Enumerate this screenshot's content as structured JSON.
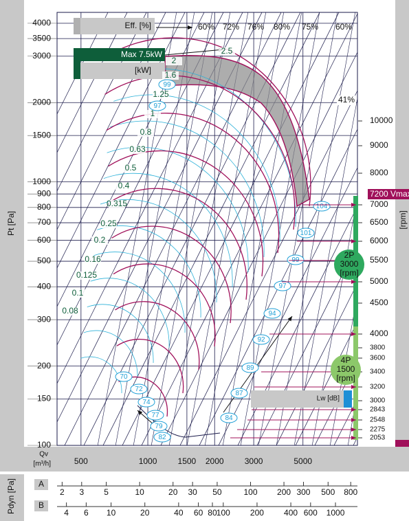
{
  "chart_data": {
    "type": "fan-curve",
    "y_label": "Pt [Pa]",
    "ylim": [
      100,
      4400
    ],
    "yticks": [
      100,
      150,
      200,
      300,
      400,
      500,
      600,
      700,
      800,
      900,
      1000,
      1500,
      2000,
      3000,
      3500,
      4000
    ],
    "x_label": "Qv",
    "x_unit": "[m³/h]",
    "xlim": [
      390,
      8800
    ],
    "xticks": [
      500,
      1000,
      1500,
      2000,
      3000,
      5000
    ],
    "efficiency_title": "Eff. [%]",
    "efficiency_labels": [
      "60%",
      "72%",
      "76%",
      "80%",
      "75%",
      "60%"
    ],
    "efficiency_side": "41%",
    "power_title": "Max 7.5kW",
    "power_unit": "[kW]",
    "power_values": [
      2.5,
      2,
      1.6,
      1.25,
      1,
      0.8,
      0.63,
      0.5,
      0.4,
      0.315,
      0.25,
      0.2,
      0.16,
      0.125,
      0.1,
      0.08
    ],
    "noise_values": [
      99,
      97,
      104,
      101,
      99,
      97,
      94,
      92,
      89,
      87,
      84,
      70,
      72,
      74,
      77,
      79,
      82
    ],
    "noise_title": "Lw [dB]",
    "rpm_label": "[rpm]",
    "rpm_ticks": [
      10000,
      9000,
      8000,
      7000,
      6500,
      6000,
      5500,
      5000,
      4500,
      4000,
      3800,
      3600,
      3400,
      3200,
      3000,
      2843,
      2548,
      2275,
      2053
    ],
    "vmax_label": "7200 Vmax",
    "motors": [
      {
        "poles": "2P",
        "speed": 3000,
        "unit": "[rpm]"
      },
      {
        "poles": "4P",
        "speed": 1500,
        "unit": "[rpm]"
      }
    ],
    "pdyn_label": "Pdyn [Pa]",
    "pdyn_scales": [
      {
        "name": "A",
        "xlim": [
          1.8,
          920
        ],
        "ticks": [
          2,
          3,
          5,
          10,
          20,
          30,
          50,
          100,
          200,
          300,
          500,
          800
        ]
      },
      {
        "name": "B",
        "xlim": [
          3.3,
          1570
        ],
        "ticks": [
          4,
          6,
          10,
          20,
          40,
          60,
          80,
          100,
          200,
          400,
          600,
          1000
        ]
      }
    ]
  }
}
